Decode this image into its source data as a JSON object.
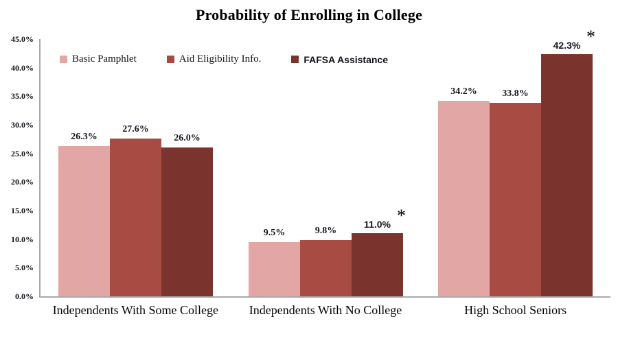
{
  "title": "Probability of Enrolling in College",
  "star_symbol": "*",
  "axis_color": "#a9a9a9",
  "legend": [
    {
      "label": "Basic Pamphlet",
      "color": "#E2A7A4"
    },
    {
      "label": "Aid Eligibility Info.",
      "color": "#A84B42"
    },
    {
      "label": "FAFSA Assistance",
      "color": "#7B332E"
    }
  ],
  "chart_data": {
    "type": "bar",
    "title": "Probability of Enrolling in College",
    "categories": [
      "Independents With Some College",
      "Independents With No College",
      "High School Seniors"
    ],
    "series": [
      {
        "name": "Basic Pamphlet",
        "color": "#E2A7A4",
        "values": [
          26.3,
          9.5,
          34.2
        ],
        "labels": [
          "26.3%",
          "9.5%",
          "34.2%"
        ],
        "starred": [
          false,
          false,
          false
        ]
      },
      {
        "name": "Aid Eligibility Info.",
        "color": "#A84B42",
        "values": [
          27.6,
          9.8,
          33.8
        ],
        "labels": [
          "27.6%",
          "9.8%",
          "33.8%"
        ],
        "starred": [
          false,
          false,
          false
        ]
      },
      {
        "name": "FAFSA Assistance",
        "color": "#7B332E",
        "values": [
          26.0,
          11.0,
          42.3
        ],
        "labels": [
          "26.0%",
          "11.0%",
          "42.3%"
        ],
        "starred": [
          false,
          true,
          true
        ]
      }
    ],
    "xlabel": "",
    "ylabel": "",
    "ylim": [
      0,
      45
    ],
    "ytick_step": 5,
    "ytick_labels": [
      "0.0%",
      "5.0%",
      "10.0%",
      "15.0%",
      "20.0%",
      "25.0%",
      "30.0%",
      "35.0%",
      "40.0%",
      "45.0%"
    ],
    "grid": false,
    "legend_position": "top-left-inside",
    "annotations": "asterisk marks statistically significant FAFSA Assistance bars"
  }
}
